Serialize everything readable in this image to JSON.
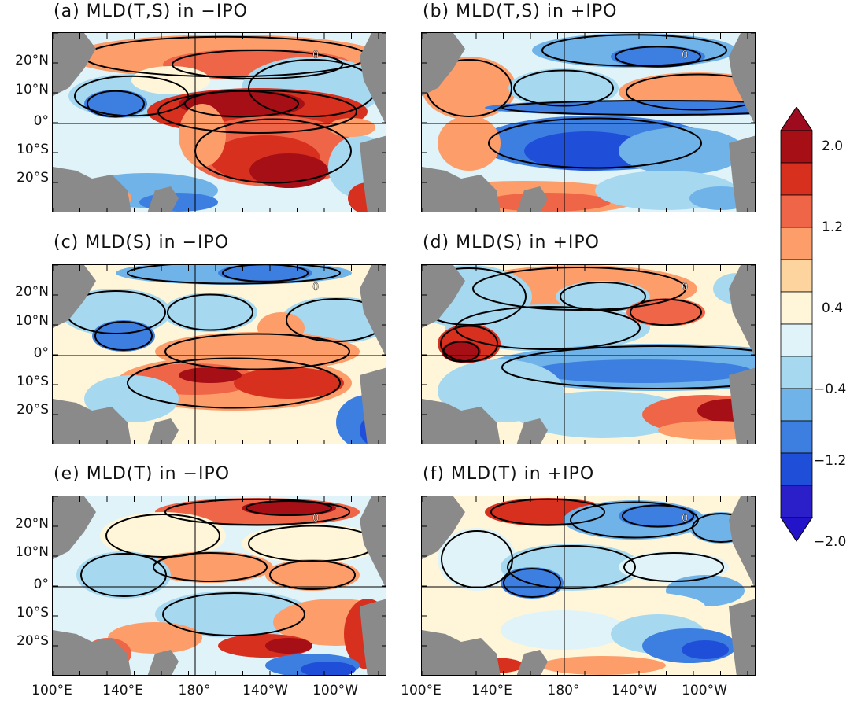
{
  "panels": [
    {
      "id": "a",
      "title": "(a) MLD(T,S) in −IPO",
      "pattern": "a"
    },
    {
      "id": "b",
      "title": "(b) MLD(T,S) in +IPO",
      "pattern": "b"
    },
    {
      "id": "c",
      "title": "(c) MLD(S) in −IPO",
      "pattern": "c"
    },
    {
      "id": "d",
      "title": "(d) MLD(S) in +IPO",
      "pattern": "d"
    },
    {
      "id": "e",
      "title": "(e) MLD(T) in −IPO",
      "pattern": "e"
    },
    {
      "id": "f",
      "title": "(f) MLD(T) in +IPO",
      "pattern": "f"
    }
  ],
  "lat_labels": [
    "20°N",
    "10°N",
    "0°",
    "10°S",
    "20°S"
  ],
  "lon_labels": [
    "100°E",
    "140°E",
    "180°",
    "140°W",
    "100°W"
  ],
  "contour_label": "0",
  "colorbar": {
    "labels": [
      "2.0",
      "1.2",
      "0.4",
      "−0.4",
      "−1.2",
      "−2.0"
    ],
    "colors": [
      "#a50f15",
      "#d7301f",
      "#ef6548",
      "#fc9d6a",
      "#fdd49e",
      "#fff6d9",
      "#e0f3f8",
      "#a6d8f0",
      "#6fb3e8",
      "#3d7fe0",
      "#1f4fd8",
      "#2a1fc8"
    ],
    "top_color": "#9e0b1e",
    "bottom_color": "#2414c9"
  },
  "land_color": "#8a8a8a"
}
